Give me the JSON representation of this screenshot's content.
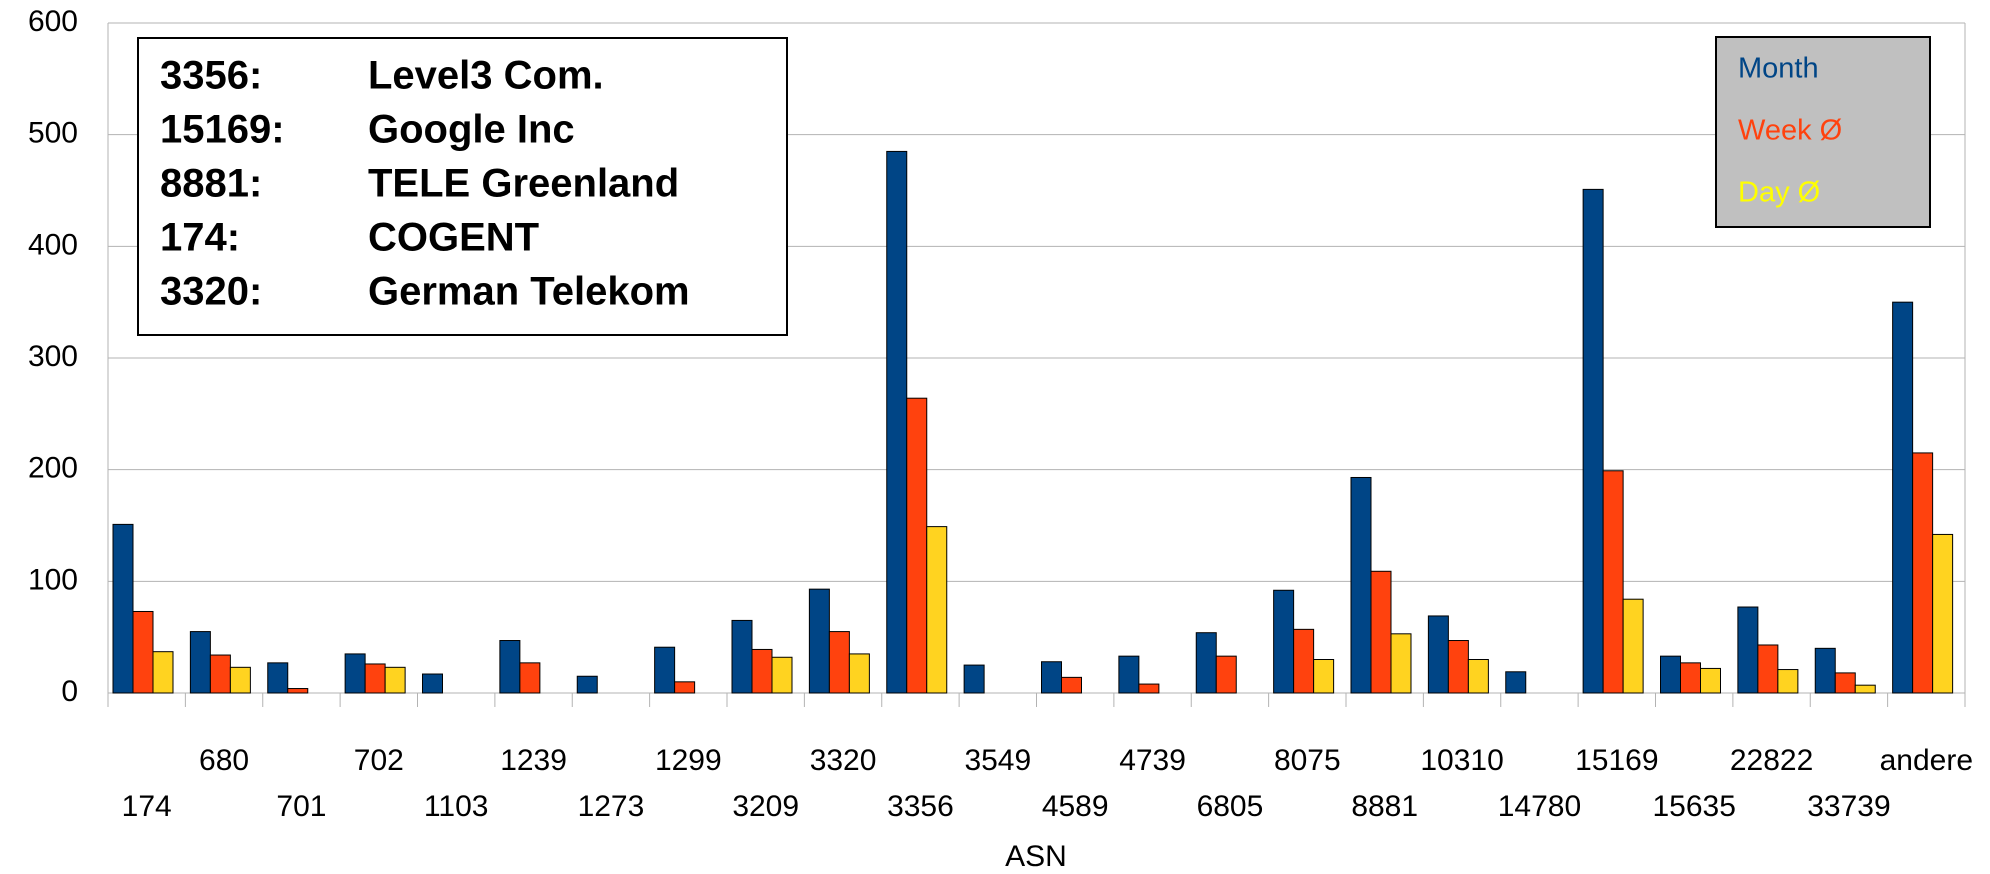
{
  "chart_data": {
    "type": "bar",
    "x_label": "ASN",
    "categories": [
      "174",
      "680",
      "701",
      "702",
      "1103",
      "1239",
      "1273",
      "1299",
      "3209",
      "3320",
      "3356",
      "3549",
      "4589",
      "4739",
      "6805",
      "8075",
      "8881",
      "10310",
      "14780",
      "15169",
      "15635",
      "22822",
      "33739",
      "andere"
    ],
    "series": [
      {
        "name": "Month",
        "color": "#004586",
        "values": [
          151,
          55,
          27,
          35,
          17,
          47,
          15,
          41,
          65,
          93,
          485,
          25,
          28,
          33,
          54,
          92,
          193,
          69,
          19,
          451,
          33,
          77,
          40,
          350
        ]
      },
      {
        "name": "Week Ø",
        "color": "#ff420e",
        "values": [
          73,
          34,
          4,
          26,
          0,
          27,
          0,
          10,
          39,
          55,
          264,
          0,
          14,
          8,
          33,
          57,
          109,
          47,
          0,
          199,
          27,
          43,
          18,
          215
        ]
      },
      {
        "name": "Day Ø",
        "color": "#ffd320",
        "values": [
          37,
          23,
          0,
          23,
          0,
          0,
          0,
          0,
          32,
          35,
          149,
          0,
          0,
          0,
          0,
          30,
          53,
          30,
          0,
          84,
          22,
          21,
          7,
          142
        ]
      }
    ],
    "legend_colors": [
      "#004586",
      "#ff420e",
      "#ffff00"
    ],
    "ylim": [
      0,
      600
    ],
    "yticks": [
      0,
      100,
      200,
      300,
      400,
      500,
      600
    ],
    "grid": true,
    "legend": "upper right",
    "annotations": [
      {
        "asn": "3356:",
        "name": "Level3 Com."
      },
      {
        "asn": "15169:",
        "name": "Google Inc"
      },
      {
        "asn": "8881:",
        "name": "TELE Greenland"
      },
      {
        "asn": "174:",
        "name": "COGENT"
      },
      {
        "asn": "3320:",
        "name": "German Telekom"
      }
    ]
  }
}
